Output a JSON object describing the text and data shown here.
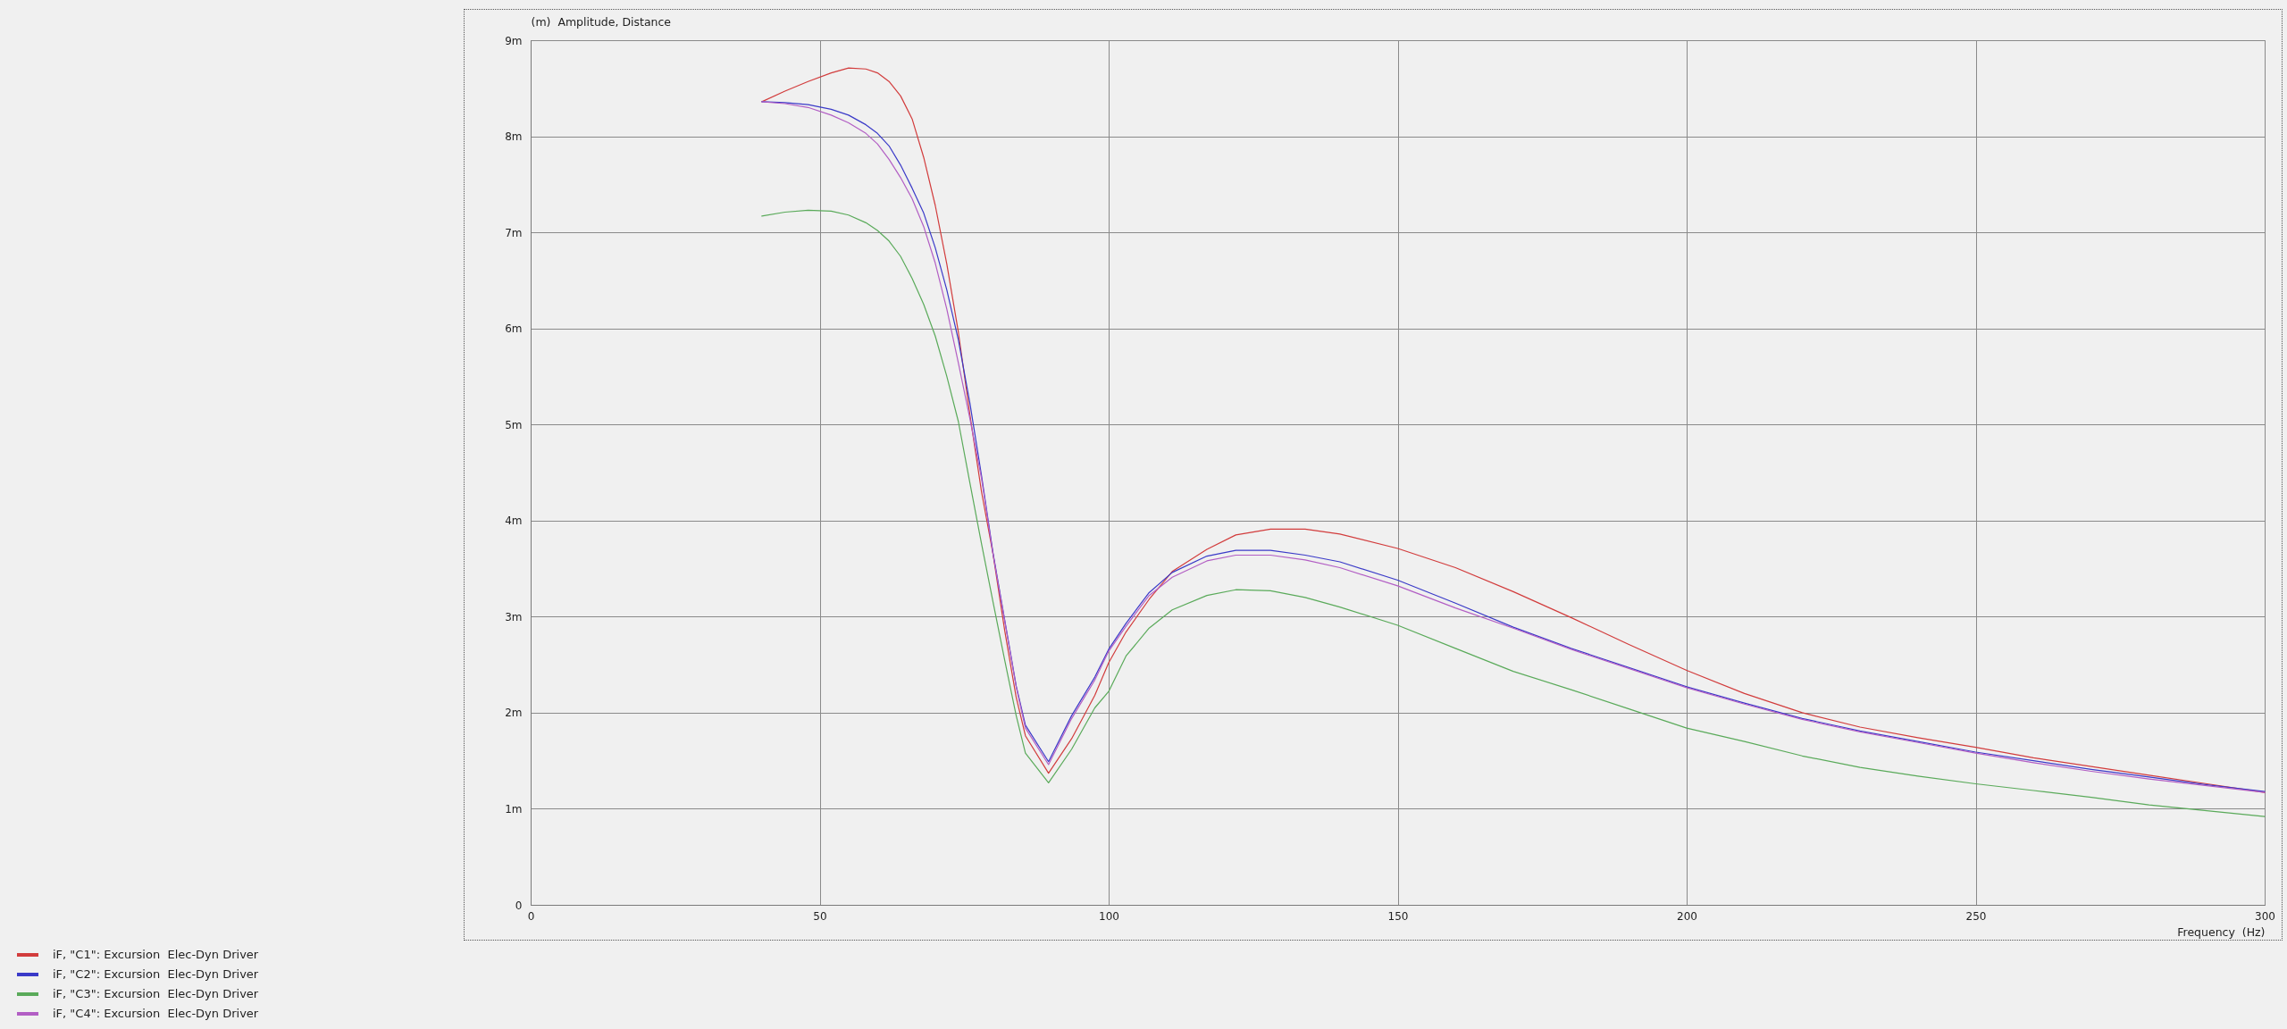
{
  "chart_data": {
    "type": "line",
    "xlabel": "Frequency  (Hz)",
    "ylabel": "(m)  Amplitude, Distance",
    "x": [
      40,
      44,
      48,
      52,
      55,
      58,
      60,
      62,
      64,
      66,
      68,
      70,
      72,
      74,
      76,
      78,
      80,
      82,
      84,
      85.6,
      89.6,
      93.6,
      97.6,
      100,
      103,
      107,
      111,
      117,
      122,
      128,
      134,
      140,
      150,
      160,
      170,
      180,
      190,
      200,
      210,
      220,
      230,
      240,
      250,
      260,
      270,
      280,
      290,
      300
    ],
    "series": [
      {
        "name": "iF, \"C1\": Excursion  Elec-Dyn Driver",
        "color": "#d23c3c",
        "values": [
          8.36,
          8.47,
          8.57,
          8.66,
          8.71,
          8.7,
          8.66,
          8.57,
          8.42,
          8.18,
          7.78,
          7.28,
          6.67,
          5.96,
          5.1,
          4.3,
          3.65,
          2.86,
          2.16,
          1.76,
          1.37,
          1.73,
          2.18,
          2.52,
          2.84,
          3.18,
          3.47,
          3.7,
          3.85,
          3.91,
          3.91,
          3.86,
          3.71,
          3.51,
          3.26,
          2.99,
          2.71,
          2.44,
          2.2,
          2.0,
          1.85,
          1.74,
          1.64,
          1.53,
          1.44,
          1.35,
          1.26,
          1.17
        ]
      },
      {
        "name": "iF, \"C2\": Excursion  Elec-Dyn Driver",
        "color": "#3a3ac8",
        "values": [
          8.36,
          8.35,
          8.33,
          8.28,
          8.22,
          8.12,
          8.03,
          7.9,
          7.7,
          7.46,
          7.2,
          6.84,
          6.4,
          5.88,
          5.22,
          4.47,
          3.66,
          2.97,
          2.28,
          1.87,
          1.49,
          1.97,
          2.37,
          2.66,
          2.93,
          3.25,
          3.46,
          3.63,
          3.69,
          3.69,
          3.64,
          3.57,
          3.38,
          3.14,
          2.89,
          2.67,
          2.47,
          2.27,
          2.1,
          1.94,
          1.81,
          1.7,
          1.59,
          1.5,
          1.41,
          1.33,
          1.25,
          1.18
        ]
      },
      {
        "name": "iF, \"C3\": Excursion  Elec-Dyn Driver",
        "color": "#5aaa5a",
        "values": [
          7.17,
          7.21,
          7.23,
          7.22,
          7.18,
          7.1,
          7.02,
          6.91,
          6.75,
          6.52,
          6.25,
          5.92,
          5.5,
          5.03,
          4.39,
          3.76,
          3.15,
          2.55,
          1.97,
          1.58,
          1.27,
          1.62,
          2.05,
          2.22,
          2.59,
          2.88,
          3.07,
          3.22,
          3.28,
          3.27,
          3.2,
          3.1,
          2.91,
          2.67,
          2.43,
          2.24,
          2.04,
          1.84,
          1.7,
          1.55,
          1.43,
          1.34,
          1.26,
          1.19,
          1.12,
          1.04,
          0.98,
          0.92
        ]
      },
      {
        "name": "iF, \"C4\": Excursion  Elec-Dyn Driver",
        "color": "#b25ec4",
        "values": [
          8.36,
          8.34,
          8.3,
          8.22,
          8.14,
          8.03,
          7.92,
          7.76,
          7.57,
          7.35,
          7.06,
          6.68,
          6.2,
          5.64,
          5.06,
          4.44,
          3.65,
          2.96,
          2.27,
          1.84,
          1.46,
          1.94,
          2.34,
          2.64,
          2.9,
          3.22,
          3.41,
          3.58,
          3.64,
          3.64,
          3.59,
          3.51,
          3.32,
          3.09,
          2.88,
          2.66,
          2.46,
          2.26,
          2.09,
          1.93,
          1.8,
          1.69,
          1.58,
          1.48,
          1.39,
          1.31,
          1.24,
          1.17
        ]
      }
    ],
    "xlim": [
      0,
      300
    ],
    "ylim": [
      0,
      9
    ],
    "xticks": [
      0,
      50,
      100,
      150,
      200,
      250,
      300
    ],
    "yticks": [
      0,
      {
        "value": 1,
        "label": "1m"
      },
      {
        "value": 2,
        "label": "2m"
      },
      {
        "value": 3,
        "label": "3m"
      },
      {
        "value": 4,
        "label": "4m"
      },
      {
        "value": 5,
        "label": "5m"
      },
      {
        "value": 6,
        "label": "6m"
      },
      {
        "value": 7,
        "label": "7m"
      },
      {
        "value": 8,
        "label": "8m"
      },
      {
        "value": 9,
        "label": "9m"
      }
    ],
    "grid": true,
    "legend": "bottom left"
  }
}
